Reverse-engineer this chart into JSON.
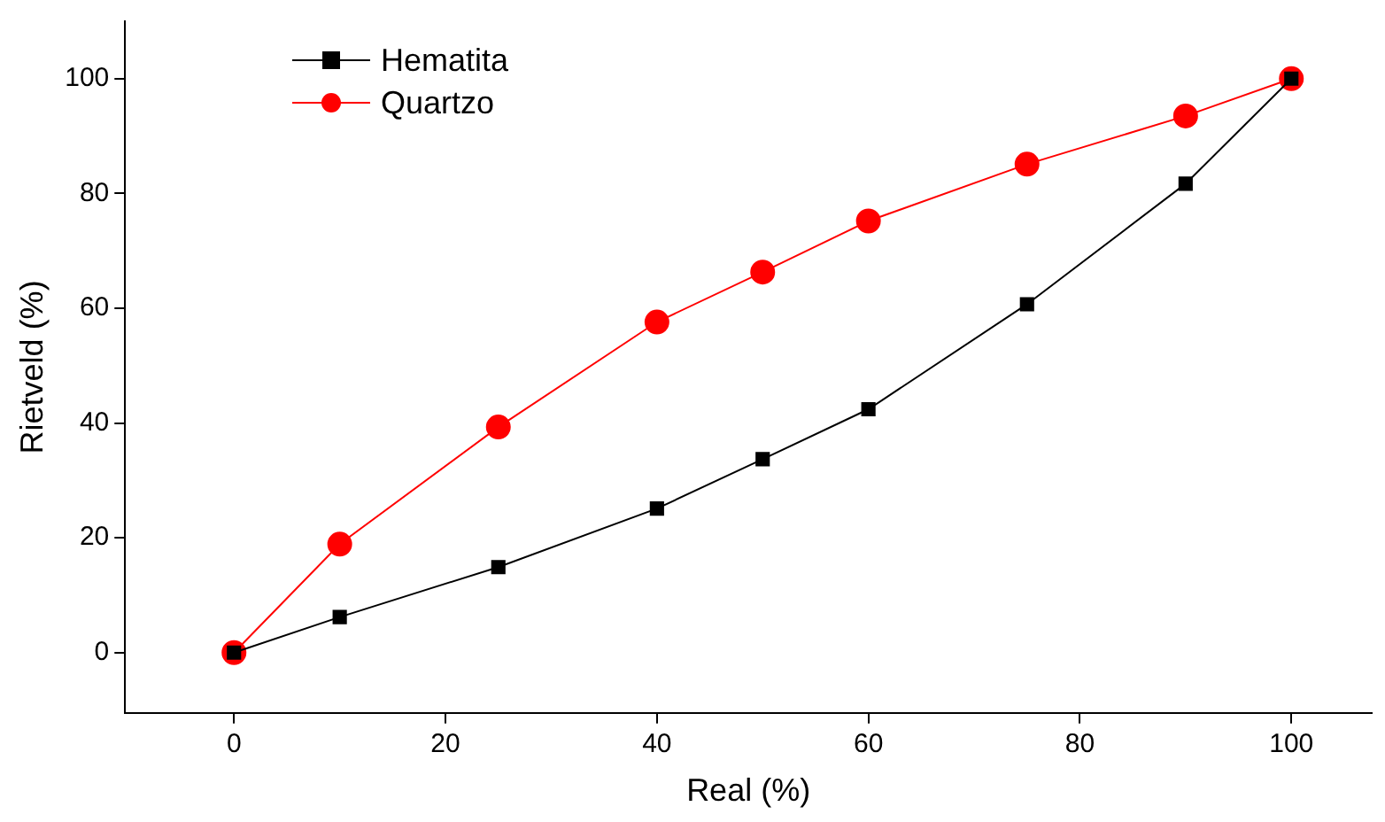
{
  "chart_data": {
    "type": "line",
    "xlabel": "Real (%)",
    "ylabel": "Rietveld (%)",
    "x": [
      0,
      10,
      25,
      40,
      50,
      60,
      75,
      90,
      100
    ],
    "series": [
      {
        "name": "Hematita",
        "color": "#000000",
        "marker": "square",
        "values": [
          0,
          6.2,
          14.9,
          25.1,
          33.7,
          42.4,
          60.7,
          81.7,
          100
        ]
      },
      {
        "name": "Quartzo",
        "color": "#ff0000",
        "marker": "circle",
        "values": [
          0,
          18.9,
          39.3,
          57.6,
          66.3,
          75.2,
          85.1,
          93.5,
          100
        ]
      }
    ],
    "xlim": [
      -10.3,
      107.6
    ],
    "xticks": [
      0,
      20,
      40,
      60,
      80,
      100
    ],
    "ylim": [
      -10.5,
      110
    ],
    "yticks": [
      0,
      20,
      40,
      60,
      80,
      100
    ],
    "grid": false,
    "legend": "top left"
  }
}
